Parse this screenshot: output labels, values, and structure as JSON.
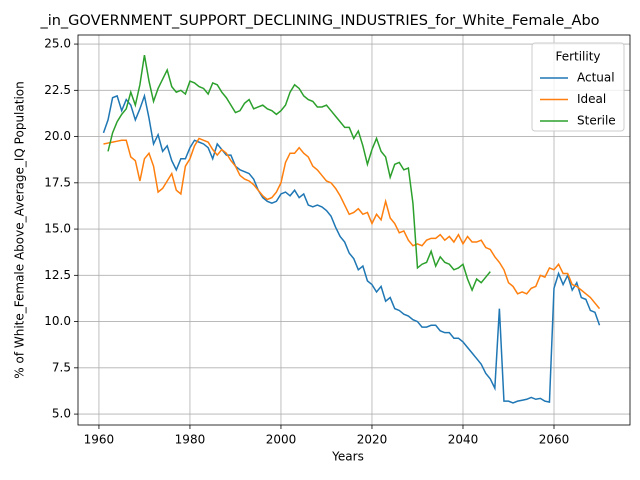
{
  "chart_data": {
    "type": "line",
    "title": "_in_GOVERNMENT_SUPPORT_DECLINING_INDUSTRIES_for_White_Female_Abo",
    "xlabel": "Years",
    "ylabel": "% of White_Female Above_Average_IQ Population",
    "legend_title": "Fertility",
    "legend": "upper right",
    "grid": true,
    "x": [
      1961,
      1962,
      1963,
      1964,
      1965,
      1966,
      1967,
      1968,
      1969,
      1970,
      1971,
      1972,
      1973,
      1974,
      1975,
      1976,
      1977,
      1978,
      1979,
      1980,
      1981,
      1982,
      1983,
      1984,
      1985,
      1986,
      1987,
      1988,
      1989,
      1990,
      1991,
      1992,
      1993,
      1994,
      1995,
      1996,
      1997,
      1998,
      1999,
      2000,
      2001,
      2002,
      2003,
      2004,
      2005,
      2006,
      2007,
      2008,
      2009,
      2010,
      2011,
      2012,
      2013,
      2014,
      2015,
      2016,
      2017,
      2018,
      2019,
      2020,
      2021,
      2022,
      2023,
      2024,
      2025,
      2026,
      2027,
      2028,
      2029,
      2030,
      2031,
      2032,
      2033,
      2034,
      2035,
      2036,
      2037,
      2038,
      2039,
      2040,
      2041,
      2042,
      2043,
      2044,
      2045,
      2046,
      2047,
      2048,
      2049,
      2050,
      2051,
      2052,
      2053,
      2054,
      2055,
      2056,
      2057,
      2058,
      2059,
      2060,
      2061,
      2062,
      2063,
      2064,
      2065,
      2066,
      2067,
      2068,
      2069,
      2070
    ],
    "series": [
      {
        "name": "Actual",
        "color": "#1f77b4",
        "values": [
          20.2,
          20.9,
          22.1,
          22.2,
          21.4,
          22.0,
          21.7,
          20.9,
          21.5,
          22.2,
          21.0,
          19.6,
          20.1,
          19.2,
          19.5,
          18.7,
          18.2,
          18.8,
          18.8,
          19.4,
          19.8,
          19.7,
          19.6,
          19.4,
          18.8,
          19.6,
          19.3,
          19.0,
          19.0,
          18.4,
          18.2,
          18.1,
          18.0,
          17.7,
          17.1,
          16.7,
          16.5,
          16.4,
          16.5,
          16.9,
          17.0,
          16.8,
          17.1,
          16.7,
          16.9,
          16.3,
          16.2,
          16.3,
          16.2,
          16.0,
          15.7,
          15.1,
          14.6,
          14.3,
          13.7,
          13.4,
          12.8,
          13.0,
          12.2,
          12.0,
          11.6,
          11.9,
          11.1,
          11.3,
          10.7,
          10.6,
          10.4,
          10.3,
          10.1,
          10.0,
          9.7,
          9.7,
          9.8,
          9.8,
          9.5,
          9.4,
          9.4,
          9.1,
          9.1,
          8.9,
          8.6,
          8.3,
          8.0,
          7.7,
          7.2,
          6.9,
          6.4,
          10.7,
          5.7,
          5.7,
          5.6,
          5.7,
          5.75,
          5.8,
          5.9,
          5.8,
          5.85,
          5.7,
          5.65,
          11.8,
          12.6,
          12.0,
          12.5,
          11.7,
          12.1,
          11.3,
          11.2,
          10.6,
          10.5,
          9.8
        ]
      },
      {
        "name": "Ideal",
        "color": "#ff7f0e",
        "values": [
          19.6,
          19.65,
          19.7,
          19.75,
          19.8,
          19.8,
          18.9,
          18.7,
          17.6,
          18.8,
          19.1,
          18.4,
          17.0,
          17.2,
          17.6,
          18.0,
          17.1,
          16.9,
          18.4,
          18.8,
          19.5,
          19.9,
          19.8,
          19.7,
          19.3,
          19.0,
          19.3,
          19.1,
          18.7,
          18.4,
          17.9,
          17.7,
          17.6,
          17.4,
          17.1,
          16.8,
          16.6,
          16.7,
          17.0,
          17.5,
          18.6,
          19.1,
          19.1,
          19.4,
          19.1,
          18.9,
          18.4,
          18.2,
          17.9,
          17.6,
          17.5,
          17.2,
          16.8,
          16.3,
          15.8,
          15.9,
          16.1,
          15.8,
          15.9,
          15.3,
          15.8,
          15.5,
          16.5,
          15.6,
          15.3,
          14.8,
          14.9,
          14.4,
          14.1,
          14.2,
          14.1,
          14.4,
          14.5,
          14.5,
          14.7,
          14.4,
          14.6,
          14.3,
          14.7,
          14.2,
          14.6,
          14.3,
          14.3,
          14.4,
          14.0,
          13.9,
          13.5,
          13.2,
          12.8,
          12.1,
          11.9,
          11.5,
          11.6,
          11.5,
          11.8,
          11.9,
          12.5,
          12.4,
          12.9,
          12.8,
          13.1,
          12.6,
          12.6,
          12.0,
          11.9,
          11.7,
          11.5,
          11.3,
          11.0,
          10.7
        ]
      },
      {
        "name": "Sterile",
        "color": "#2ca02c",
        "values": [
          null,
          19.2,
          20.2,
          20.8,
          21.2,
          21.5,
          22.4,
          21.7,
          22.8,
          24.4,
          23.0,
          21.9,
          22.6,
          23.1,
          23.6,
          22.7,
          22.4,
          22.5,
          22.3,
          23.0,
          22.9,
          22.7,
          22.6,
          22.3,
          22.9,
          22.8,
          22.4,
          22.1,
          21.7,
          21.3,
          21.4,
          21.8,
          22.0,
          21.5,
          21.6,
          21.7,
          21.5,
          21.4,
          21.2,
          21.4,
          21.7,
          22.4,
          22.8,
          22.6,
          22.2,
          22.0,
          21.9,
          21.6,
          21.6,
          21.7,
          21.4,
          21.1,
          20.8,
          20.5,
          20.5,
          19.9,
          20.3,
          19.5,
          18.5,
          19.3,
          19.9,
          19.2,
          18.9,
          17.8,
          18.5,
          18.6,
          18.2,
          18.3,
          16.4,
          12.9,
          13.1,
          13.2,
          13.8,
          13.0,
          13.5,
          13.2,
          13.1,
          12.8,
          12.9,
          13.1,
          12.3,
          11.7,
          12.3,
          12.1,
          12.4,
          12.7,
          null,
          null,
          null,
          null,
          null,
          null,
          null,
          null,
          null,
          null,
          null,
          null,
          null,
          null,
          null,
          null,
          null,
          null,
          null,
          null,
          null,
          null,
          null,
          null
        ]
      }
    ],
    "xlim": [
      1955.4,
      2076.7
    ],
    "ylim": [
      4.41,
      25.49
    ],
    "xticks": [
      1960,
      1980,
      2000,
      2020,
      2040,
      2060
    ],
    "yticks": [
      {
        "value": 5,
        "label": "5.0"
      },
      7.5,
      {
        "value": 10,
        "label": "10.0"
      },
      12.5,
      {
        "value": 15,
        "label": "15.0"
      },
      17.5,
      {
        "value": 20,
        "label": "20.0"
      },
      22.5,
      {
        "value": 25,
        "label": "25.0"
      }
    ]
  }
}
